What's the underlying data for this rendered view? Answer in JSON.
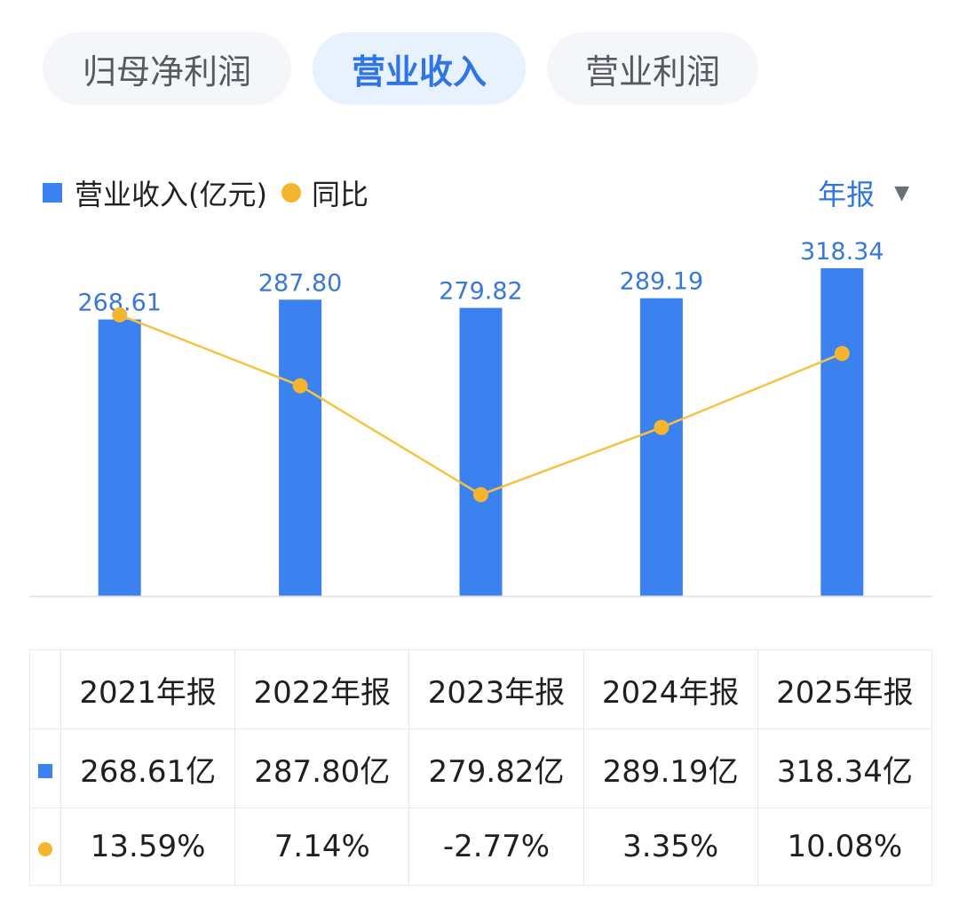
{
  "tabs": [
    {
      "label": "归母净利润",
      "active": false
    },
    {
      "label": "营业收入",
      "active": true
    },
    {
      "label": "营业利润",
      "active": false
    }
  ],
  "legend": {
    "bar_label": "营业收入(亿元)",
    "line_label": "同比"
  },
  "period_selector": {
    "label": "年报",
    "caret": "▼"
  },
  "colors": {
    "bar": "#3b82f0",
    "line": "#f5c342",
    "dot": "#f5b52e",
    "bar_label": "#3a78d6",
    "positive": "#e0474c",
    "negative": "#22a265",
    "accent": "#2f75e8"
  },
  "chart_data": {
    "type": "bar",
    "categories": [
      "2021年报",
      "2022年报",
      "2023年报",
      "2024年报",
      "2025年报"
    ],
    "series": [
      {
        "name": "营业收入(亿元)",
        "type": "bar",
        "values": [
          268.61,
          287.8,
          279.82,
          289.19,
          318.34
        ],
        "labels": [
          "268.61",
          "287.80",
          "279.82",
          "289.19",
          "318.34"
        ]
      },
      {
        "name": "同比",
        "type": "line",
        "values": [
          13.59,
          7.14,
          -2.77,
          3.35,
          10.08
        ]
      }
    ],
    "title": "",
    "xlabel": "",
    "ylabel": "",
    "ylim": [
      0,
      320
    ],
    "y2lim": [
      -12,
      18
    ],
    "grid": false,
    "legend": "top-left"
  },
  "table": {
    "years": [
      "2021年报",
      "2022年报",
      "2023年报",
      "2024年报",
      "2025年报"
    ],
    "revenue": [
      "268.61亿",
      "287.80亿",
      "279.82亿",
      "289.19亿",
      "318.34亿"
    ],
    "yoy": [
      "13.59%",
      "7.14%",
      "-2.77%",
      "3.35%",
      "10.08%"
    ]
  }
}
